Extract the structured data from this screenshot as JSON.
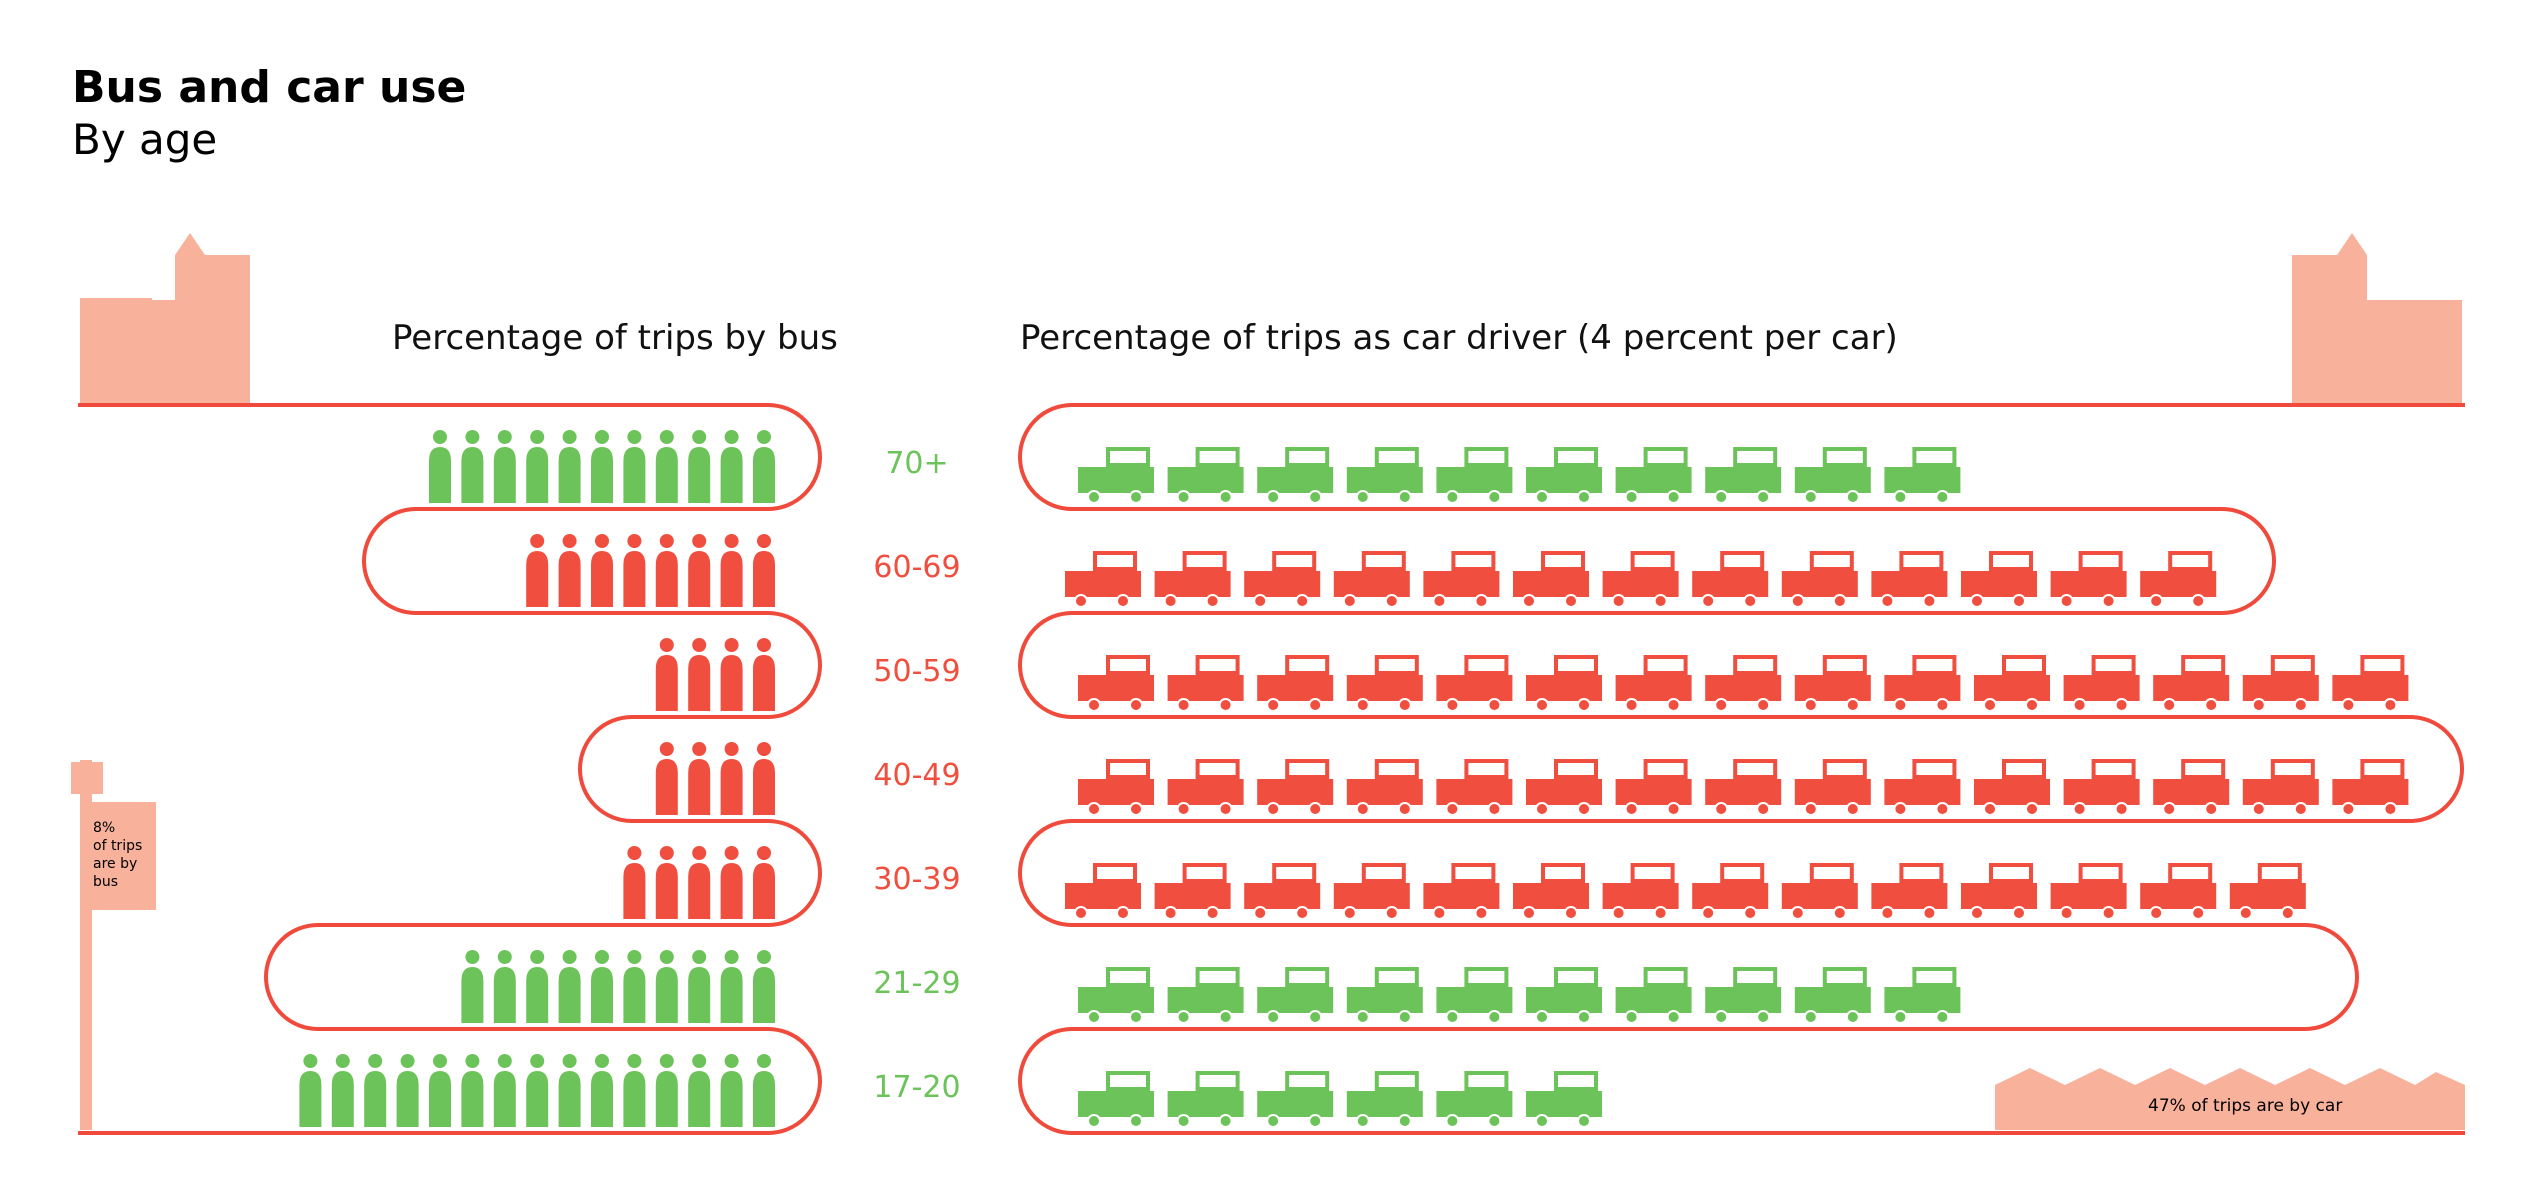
{
  "title": "Bus and car use",
  "subtitle": "By age",
  "chart_data": {
    "type": "pictograph",
    "bus_header": "Percentage of trips by bus",
    "car_header": "Percentage of trips as car driver (4 percent per car)",
    "bus_note": [
      "8%",
      "of trips",
      "are by",
      "bus"
    ],
    "car_note": "47% of trips are by car",
    "colors": {
      "above_average": "#6cc35a",
      "below_average": "#f04e3e",
      "decor": "#f8b29c",
      "road": "#ef4a3b"
    },
    "groups": [
      {
        "age": "70+",
        "bus_icons": 11,
        "cars": 10,
        "highlight": "above_average"
      },
      {
        "age": "60-69",
        "bus_icons": 8,
        "cars": 13,
        "highlight": "below_average"
      },
      {
        "age": "50-59",
        "bus_icons": 4,
        "cars": 15,
        "highlight": "below_average"
      },
      {
        "age": "40-49",
        "bus_icons": 4,
        "cars": 15,
        "highlight": "below_average"
      },
      {
        "age": "30-39",
        "bus_icons": 5,
        "cars": 14,
        "highlight": "below_average"
      },
      {
        "age": "21-29",
        "bus_icons": 10,
        "cars": 10,
        "highlight": "above_average"
      },
      {
        "age": "17-20",
        "bus_icons": 15,
        "cars": 6,
        "highlight": "above_average"
      }
    ]
  }
}
